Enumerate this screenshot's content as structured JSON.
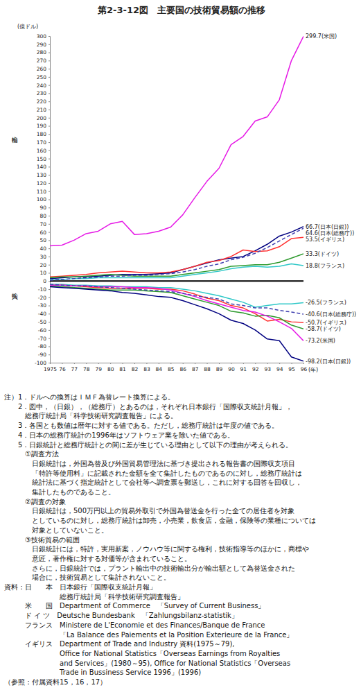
{
  "chart_data": {
    "type": "line",
    "title": "第2-3-12図　主要国の技術貿易額の推移",
    "y_label": "(億ドル)",
    "x_label": "(年)",
    "annotations": [
      {
        "text": "輸出",
        "y": 183
      },
      {
        "text": "輸入",
        "y": -8
      }
    ],
    "x": [
      1975,
      1976,
      1977,
      1978,
      1979,
      1980,
      1981,
      1982,
      1983,
      1984,
      1985,
      1986,
      1987,
      1988,
      1989,
      1990,
      1991,
      1992,
      1993,
      1994,
      1995,
      1996
    ],
    "xlim": [
      1975,
      1996
    ],
    "xticks": [
      1975,
      {
        "value": 1976,
        "label": "76"
      },
      {
        "value": 1977,
        "label": "77"
      },
      {
        "value": 1978,
        "label": "78"
      },
      {
        "value": 1979,
        "label": "79"
      },
      {
        "value": 1980,
        "label": "80"
      },
      {
        "value": 1981,
        "label": "81"
      },
      {
        "value": 1982,
        "label": "82"
      },
      {
        "value": 1983,
        "label": "83"
      },
      {
        "value": 1984,
        "label": "84"
      },
      {
        "value": 1985,
        "label": "85"
      },
      {
        "value": 1986,
        "label": "86"
      },
      {
        "value": 1987,
        "label": "87"
      },
      {
        "value": 1988,
        "label": "88"
      },
      {
        "value": 1989,
        "label": "89"
      },
      {
        "value": 1990,
        "label": "90"
      },
      {
        "value": 1991,
        "label": "91"
      },
      {
        "value": 1992,
        "label": "92"
      },
      {
        "value": 1993,
        "label": "93"
      },
      {
        "value": 1994,
        "label": "94"
      },
      {
        "value": 1995,
        "label": "95"
      },
      {
        "value": 1996,
        "label": "96"
      }
    ],
    "ylim": [
      -100,
      300
    ],
    "yticks": [
      -100,
      -90,
      -80,
      -70,
      -60,
      -50,
      -40,
      -30,
      -20,
      -10,
      0,
      10,
      20,
      30,
      40,
      50,
      60,
      70,
      80,
      90,
      100,
      110,
      120,
      130,
      140,
      150,
      160,
      170,
      180,
      190,
      200,
      210,
      220,
      230,
      240,
      250,
      260,
      270,
      280,
      290,
      300
    ],
    "grid": false,
    "series": [
      {
        "label": "299.7(米国)",
        "color": "#e619e6",
        "line_style": "solid",
        "values": [
          43,
          44,
          50,
          58,
          61,
          70,
          73,
          57,
          58,
          61,
          66,
          81,
          102,
          122,
          138,
          167,
          177,
          196,
          201,
          222,
          270,
          299.7
        ]
      },
      {
        "label": "66.7(日本(日銀))",
        "color": "#000080",
        "line_style": "solid",
        "values": [
          3,
          4,
          5,
          5,
          6,
          7,
          8,
          8,
          8,
          9,
          10,
          14,
          18,
          22,
          26,
          28,
          30,
          37,
          45,
          55,
          60,
          66.7
        ]
      },
      {
        "label": "64.6(日本(総務庁))",
        "color": "#4040b0",
        "line_style": "dashed",
        "values": [
          1,
          2,
          3,
          4,
          5,
          6,
          6,
          7,
          7,
          8,
          9,
          11,
          14,
          18,
          21,
          26,
          29,
          34,
          41,
          49,
          57,
          64.6
        ]
      },
      {
        "label": "53.5(イギリス)",
        "color": "#ff3030",
        "line_style": "solid",
        "values": [
          5,
          6,
          7,
          8,
          10,
          11,
          12,
          11,
          10,
          10,
          11,
          14,
          18,
          23,
          25,
          30,
          38,
          36,
          37,
          42,
          52,
          53.5
        ]
      },
      {
        "label": "33.3(ドイツ)",
        "color": "#2e9a2e",
        "line_style": "solid",
        "values": [
          4,
          5,
          5,
          6,
          7,
          8,
          7,
          6,
          6,
          6,
          6,
          8,
          10,
          12,
          14,
          18,
          19,
          20,
          20,
          23,
          28,
          33.3
        ]
      },
      {
        "label": "18.8(フランス)",
        "color": "#30c8c8",
        "line_style": "solid",
        "values": [
          2,
          2,
          3,
          3,
          4,
          4,
          4,
          4,
          4,
          4,
          4,
          6,
          8,
          10,
          12,
          15,
          17,
          18,
          17,
          18,
          21,
          18.8
        ]
      },
      {
        "label": "-26.5(フランス)",
        "color": "#30c8c8",
        "line_style": "solid",
        "values": [
          -4,
          -4,
          -5,
          -5,
          -6,
          -6,
          -7,
          -7,
          -7,
          -8,
          -8,
          -10,
          -12,
          -15,
          -18,
          -22,
          -26,
          -32,
          -30,
          -28,
          -28,
          -26.5
        ]
      },
      {
        "label": "-40.6(日本(総務庁))",
        "color": "#4040b0",
        "line_style": "dashed",
        "values": [
          -4,
          -5,
          -6,
          -6,
          -7,
          -8,
          -9,
          -10,
          -11,
          -12,
          -13,
          -15,
          -18,
          -20,
          -22,
          -28,
          -30,
          -33,
          -33,
          -36,
          -38,
          -40.6
        ]
      },
      {
        "label": "-50.7(イギリス)",
        "color": "#ff3030",
        "line_style": "solid",
        "values": [
          -5,
          -5,
          -6,
          -7,
          -8,
          -9,
          -9,
          -9,
          -9,
          -10,
          -10,
          -12,
          -16,
          -21,
          -24,
          -30,
          -33,
          -40,
          -49,
          -47,
          -50,
          -50.7
        ]
      },
      {
        "label": "-58.7(ドイツ)",
        "color": "#2e9a2e",
        "line_style": "solid",
        "values": [
          -6,
          -7,
          -8,
          -9,
          -10,
          -11,
          -11,
          -11,
          -12,
          -13,
          -14,
          -18,
          -22,
          -26,
          -30,
          -37,
          -39,
          -43,
          -42,
          -45,
          -54,
          -58.7
        ]
      },
      {
        "label": "-73.2(米国)",
        "color": "#e619e6",
        "line_style": "solid",
        "values": [
          -5,
          -5,
          -6,
          -6,
          -7,
          -7,
          -7,
          -8,
          -8,
          -9,
          -11,
          -15,
          -19,
          -24,
          -28,
          -32,
          -36,
          -38,
          -43,
          -50,
          -58,
          -73.2
        ]
      },
      {
        "label": "-98.2(日本(日銀))",
        "color": "#000080",
        "line_style": "solid",
        "values": [
          -7,
          -8,
          -9,
          -10,
          -11,
          -12,
          -14,
          -15,
          -17,
          -19,
          -20,
          -24,
          -29,
          -34,
          -40,
          -48,
          -52,
          -60,
          -71,
          -73,
          -93,
          -98.2
        ]
      }
    ]
  },
  "notes": [
    "注）1．ドルへの換算はＩＭＦ為替レート換算による。",
    "　　2．図中，（日銀），（総務庁）とあるのは，それぞれ日本銀行「国際収支統計月報」，",
    "　　　総務庁統計局「科学技術研究調査報告」による。",
    "　　3．各国とも数値は暦年に対する値である。ただし，総務庁統計は年度の値である。",
    "　　4．日本の総務庁統計の1996年はソフトウェア業を除いた値である。",
    "　　5．日銀統計と総務庁統計との間に差が生じている理由として以下の理由が考えられる。",
    "　　　①調査方法",
    "　　　　日銀統計は，外国為替及び外国貿易管理法に基づき提出される報告書の国際収支項目",
    "　　　　「特許等使用料」に記載された金額を全て集計したものであるのに対し，総務庁統計は",
    "　　　　統計法に基づく指定統計として会社等へ調査票を郵送し，これに対する回答を回収し，",
    "　　　　集計したものであること。",
    "　　　②調査の対象",
    "　　　　日銀統計は，500万円以上の貿易外取引で外国為替送金を行った全ての居住者を対象",
    "　　　　としているのに対し，総務庁統計は卸売，小売業，飲食店，金融，保険等の業種については",
    "　　　　対象としていないこと。",
    "　　　③技術貿易の範囲",
    "　　　　日銀統計には，特許，実用新案，ノウハウ等に関する権利，技術指導等のほかに，商標や",
    "　　　　意匠，著作権に対する対価等が含まれていること。",
    "　　　　さらに，日銀統計では，プラント輸出中の技術輸出分が輸出額として為替送金された",
    "　　　　場合に，技術貿易として集計されないこと。",
    "資料：日　　本　日本銀行「国際収支統計月報」",
    "　　　　　　　　総務庁統計局「科学技術研究調査報告」",
    "　　　米　　国　Department of Commerce　「Survey of Current Business」",
    "　　　ド イ ツ　Deutsche Bundesbank　「Zahlungsbilanz-statistik」",
    "　　　フランス　Ministere de L'Economie et des Finances/Banque de France",
    "　　　　　　　　「La Balance des Paiements et la Position Exterieure de la France」",
    "　　　イギリス　Department of Trade and Industry 資料(1975～79),",
    "　　　　　　　　Office for National Statistics「Overseas Earnings from Royalties",
    "　　　　　　　　and Services」(1980～95), Office for National Statistics「Overseas",
    "　　　　　　　　Trade in Bussiness Service 1996」(1996)",
    "（参照：付属資料15，16，17）"
  ]
}
